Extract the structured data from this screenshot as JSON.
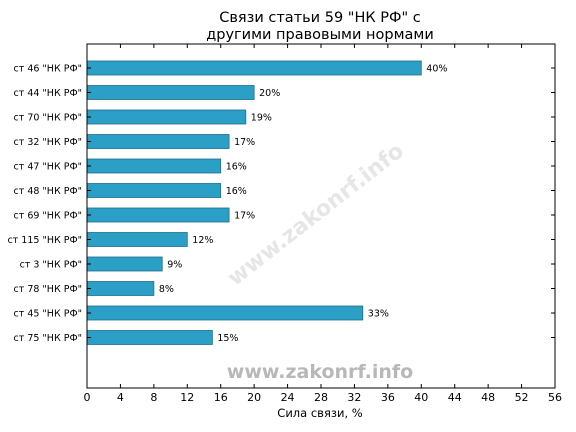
{
  "chart_data": {
    "type": "bar",
    "orientation": "horizontal",
    "title_lines": [
      "Связи статьи 59 \"НК РФ\" с",
      "другими правовыми нормами"
    ],
    "xlabel": "Сила связи, %",
    "ylabel": "",
    "xlim": [
      0,
      56
    ],
    "x_ticks": [
      0,
      4,
      8,
      12,
      16,
      20,
      24,
      28,
      32,
      36,
      40,
      44,
      48,
      52,
      56
    ],
    "categories": [
      "ст 46 \"НК РФ\"",
      "ст 44 \"НК РФ\"",
      "ст 70 \"НК РФ\"",
      "ст 32 \"НК РФ\"",
      "ст 47 \"НК РФ\"",
      "ст 48 \"НК РФ\"",
      "ст 69 \"НК РФ\"",
      "ст 115 \"НК РФ\"",
      "ст 3 \"НК РФ\"",
      "ст 78 \"НК РФ\"",
      "ст 45 \"НК РФ\"",
      "ст 75 \"НК РФ\""
    ],
    "values": [
      40,
      20,
      19,
      17,
      16,
      16,
      17,
      12,
      9,
      8,
      33,
      15
    ],
    "value_labels": [
      "40%",
      "20%",
      "19%",
      "17%",
      "16%",
      "16%",
      "17%",
      "12%",
      "9%",
      "8%",
      "33%",
      "15%"
    ],
    "bar_color": "#2b9fc6",
    "bar_edge_color": "#1e6f8c",
    "grid": false,
    "legend": "none"
  },
  "watermarks": {
    "bottom": "www.zakonrf.info",
    "diagonal": "www.zakonrf.info"
  }
}
